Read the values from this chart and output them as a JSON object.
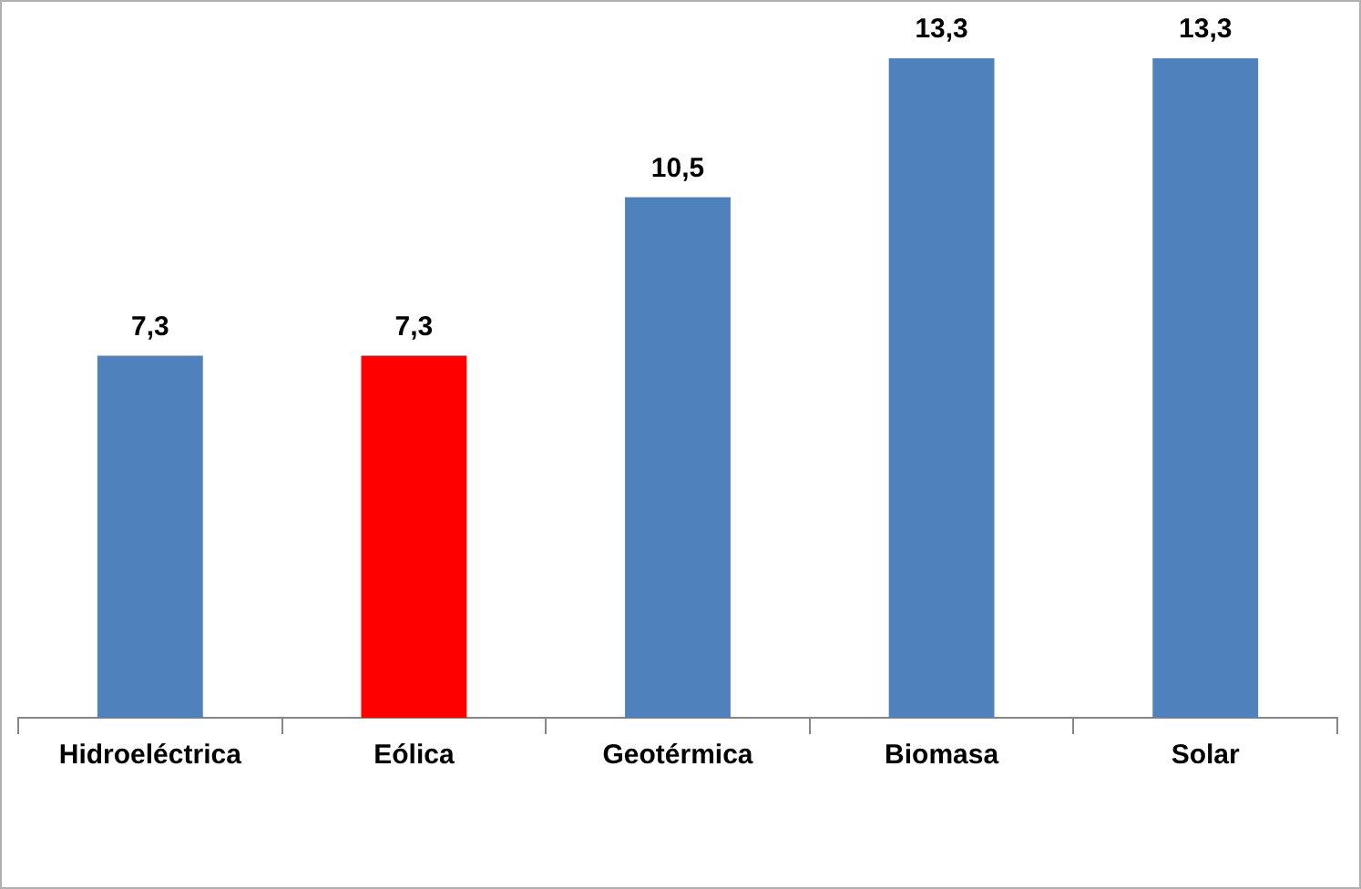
{
  "chart_data": {
    "type": "bar",
    "categories": [
      "Hidroeléctrica",
      "Eólica",
      "Geotérmica",
      "Biomasa",
      "Solar"
    ],
    "values": [
      7.3,
      7.3,
      10.5,
      13.3,
      13.3
    ],
    "colors": [
      "#4f81bd",
      "#ff0000",
      "#4f81bd",
      "#4f81bd",
      "#4f81bd"
    ],
    "value_labels": [
      "7,3",
      "7,3",
      "10,5",
      "13,3",
      "13,3"
    ],
    "grid": false,
    "legend": false
  }
}
